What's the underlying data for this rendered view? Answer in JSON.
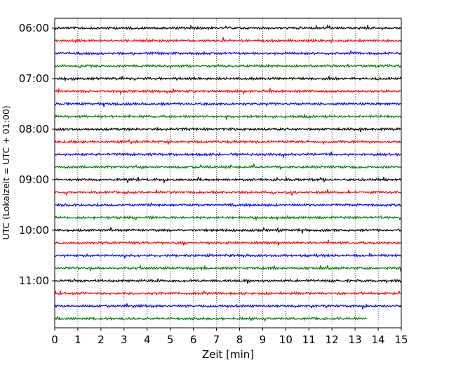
{
  "chart_data": {
    "type": "line",
    "title": "",
    "xlabel": "Zeit  [min]",
    "ylabel": "UTC (Lokalzeit = UTC + 01:00)",
    "xlim": [
      0,
      15
    ],
    "x_ticks": [
      "0",
      "1",
      "2",
      "3",
      "4",
      "5",
      "6",
      "7",
      "8",
      "9",
      "10",
      "11",
      "12",
      "13",
      "14",
      "15"
    ],
    "y_ticks": [
      "06:00",
      "07:00",
      "08:00",
      "09:00",
      "10:00",
      "11:00"
    ],
    "grid": "vertical dotted",
    "trace_interval_min": 15,
    "colors": [
      "#000000",
      "#ff0000",
      "#0000ff",
      "#007f00"
    ],
    "series": [
      {
        "start": "06:00",
        "color": "#000000",
        "end_min": 15
      },
      {
        "start": "06:15",
        "color": "#ff0000",
        "end_min": 15
      },
      {
        "start": "06:30",
        "color": "#0000ff",
        "end_min": 15
      },
      {
        "start": "06:45",
        "color": "#007f00",
        "end_min": 15
      },
      {
        "start": "07:00",
        "color": "#000000",
        "end_min": 15
      },
      {
        "start": "07:15",
        "color": "#ff0000",
        "end_min": 15
      },
      {
        "start": "07:30",
        "color": "#0000ff",
        "end_min": 15
      },
      {
        "start": "07:45",
        "color": "#007f00",
        "end_min": 15
      },
      {
        "start": "08:00",
        "color": "#000000",
        "end_min": 15
      },
      {
        "start": "08:15",
        "color": "#ff0000",
        "end_min": 15
      },
      {
        "start": "08:30",
        "color": "#0000ff",
        "end_min": 15
      },
      {
        "start": "08:45",
        "color": "#007f00",
        "end_min": 15
      },
      {
        "start": "09:00",
        "color": "#000000",
        "end_min": 15
      },
      {
        "start": "09:15",
        "color": "#ff0000",
        "end_min": 15
      },
      {
        "start": "09:30",
        "color": "#0000ff",
        "end_min": 15
      },
      {
        "start": "09:45",
        "color": "#007f00",
        "end_min": 15
      },
      {
        "start": "10:00",
        "color": "#000000",
        "end_min": 15
      },
      {
        "start": "10:15",
        "color": "#ff0000",
        "end_min": 15
      },
      {
        "start": "10:30",
        "color": "#0000ff",
        "end_min": 15
      },
      {
        "start": "10:45",
        "color": "#007f00",
        "end_min": 15
      },
      {
        "start": "11:00",
        "color": "#000000",
        "end_min": 15
      },
      {
        "start": "11:15",
        "color": "#ff0000",
        "end_min": 15
      },
      {
        "start": "11:30",
        "color": "#0000ff",
        "end_min": 15
      },
      {
        "start": "11:45",
        "color": "#007f00",
        "end_min": 13.5
      }
    ]
  }
}
